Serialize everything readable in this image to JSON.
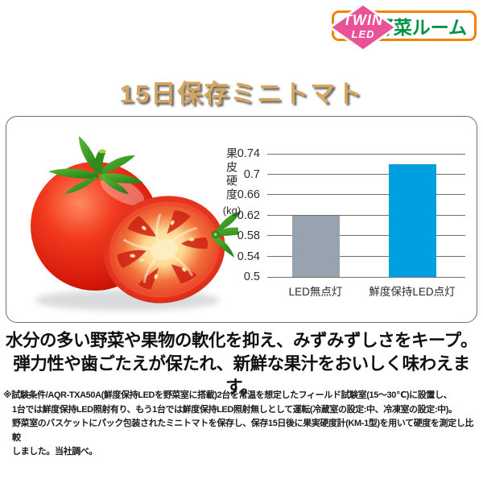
{
  "logo": {
    "badge_line1": "TWIN",
    "badge_line2": "LED",
    "room_label": "野菜ルーム",
    "badge_color": "#EA5298",
    "border_color": "#F08300",
    "room_text_color": "#009142"
  },
  "title": "15日保存ミニトマト",
  "chart_data": {
    "type": "bar",
    "title": "",
    "xlabel": "",
    "ylabel": "果皮硬度(kg)",
    "ylabel_vertical": "果皮硬度",
    "ylabel_unit": "(kg)",
    "categories": [
      "LED無点灯",
      "鮮度保持LED点灯"
    ],
    "values": [
      0.62,
      0.72
    ],
    "bar_colors": [
      "#97A3AE",
      "#00A0E0"
    ],
    "ylim": [
      0.5,
      0.74
    ],
    "yticks": [
      0.5,
      0.54,
      0.58,
      0.62,
      0.66,
      0.7,
      0.74
    ],
    "grid": true,
    "legend": false
  },
  "description": {
    "line1": "水分の多い野菜や果物の軟化を抑え、みずみずしさをキープ。",
    "line2": "弾力性や歯ごたえが保たれ、新鮮な果汁をおいしく味わえます。"
  },
  "footnote": {
    "lines": [
      "※試験条件/AQR-TXA50A(鮮度保持LEDを野菜室に搭載)2台を常温を想定したフィールド試験室(15～30℃)に設置し、",
      "1台では鮮度保持LED照射有り、もう1台では鮮度保持LED照射無しとして運転(冷蔵室の設定:中、冷凍室の設定:中)。",
      "野菜室のバスケットにパック包装されたミニトマトを保存し、保存15日後に果実硬度計(KM-1型)を用いて硬度を測定し比較",
      "しました。当社調べ。"
    ]
  }
}
